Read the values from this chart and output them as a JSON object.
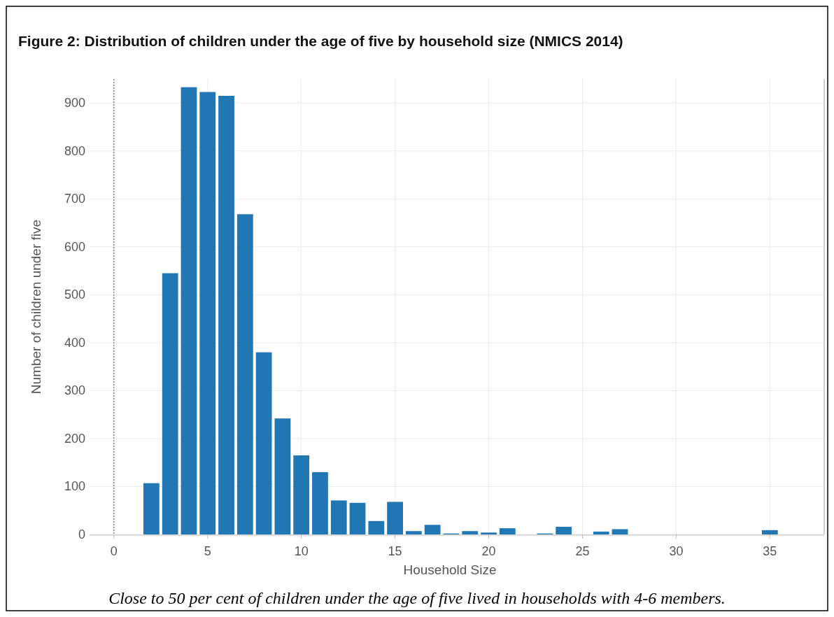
{
  "chart_data": {
    "type": "bar",
    "title": "Figure 2: Distribution of children under the age of five by household size (NMICS 2014)",
    "xlabel": "Household Size",
    "ylabel": "Number of children under five",
    "x": [
      2,
      3,
      4,
      5,
      6,
      7,
      8,
      9,
      10,
      11,
      12,
      13,
      14,
      15,
      16,
      17,
      18,
      19,
      20,
      21,
      23,
      24,
      26,
      27,
      35
    ],
    "values": [
      107,
      545,
      933,
      923,
      915,
      668,
      380,
      242,
      165,
      130,
      71,
      66,
      28,
      68,
      7,
      20,
      2,
      7,
      4,
      13,
      2,
      16,
      6,
      11,
      9
    ],
    "color": "#2077b4",
    "xlim": [
      -1.3,
      37.9
    ],
    "xticks": [
      0,
      5,
      10,
      15,
      20,
      25,
      30,
      35
    ],
    "ylim": [
      0,
      950
    ],
    "yticks": [
      0,
      100,
      200,
      300,
      400,
      500,
      600,
      700,
      800,
      900
    ],
    "grid": true,
    "ref_lines": [
      {
        "axis": "x",
        "value": 0,
        "line_style": "dotted",
        "color": "#555555"
      }
    ],
    "annotations": [
      "Close to 50 per cent of children under the age of five lived in households with 4-6 members."
    ]
  }
}
